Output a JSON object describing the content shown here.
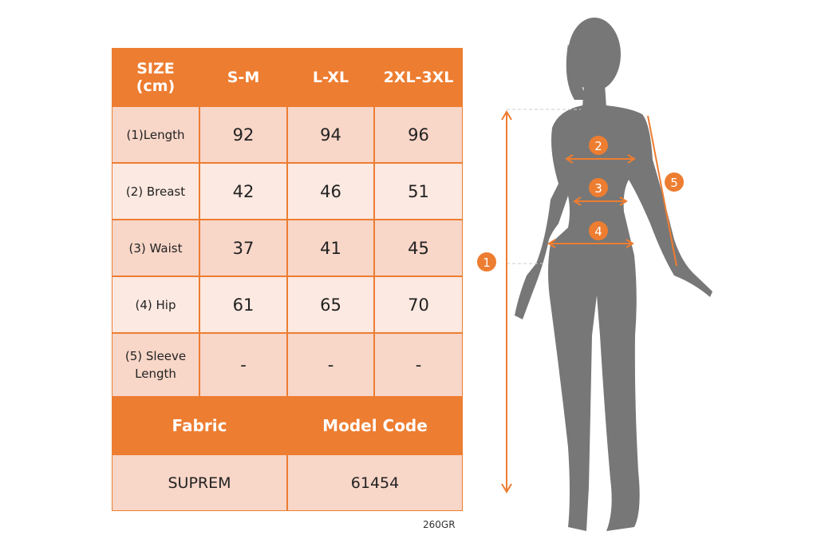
{
  "colors": {
    "accent": "#ED7D31",
    "row_dark": "#F8D6C8",
    "row_light": "#FCE9E1",
    "silhouette": "#777777"
  },
  "table": {
    "headers": [
      "SIZE\n(cm)",
      "S-M",
      "L-XL",
      "2XL-3XL"
    ],
    "header_line1": "SIZE",
    "header_line2": "(cm)",
    "rows": [
      {
        "label": "(1)Length",
        "values": [
          "92",
          "94",
          "96"
        ]
      },
      {
        "label": "(2) Breast",
        "values": [
          "42",
          "46",
          "51"
        ]
      },
      {
        "label": "(3) Waist",
        "values": [
          "37",
          "41",
          "45"
        ]
      },
      {
        "label": "(4) Hip",
        "values": [
          "61",
          "65",
          "70"
        ]
      },
      {
        "label": "(5) Sleeve Length",
        "label_line1": "(5) Sleeve",
        "label_line2": "Length",
        "values": [
          "-",
          "-",
          "-"
        ]
      }
    ],
    "fabric_label": "Fabric",
    "model_code_label": "Model Code",
    "fabric_value": "SUPREM",
    "model_code_value": "61454"
  },
  "note": "260GR",
  "figure": {
    "markers": [
      "1",
      "2",
      "3",
      "4",
      "5"
    ]
  }
}
